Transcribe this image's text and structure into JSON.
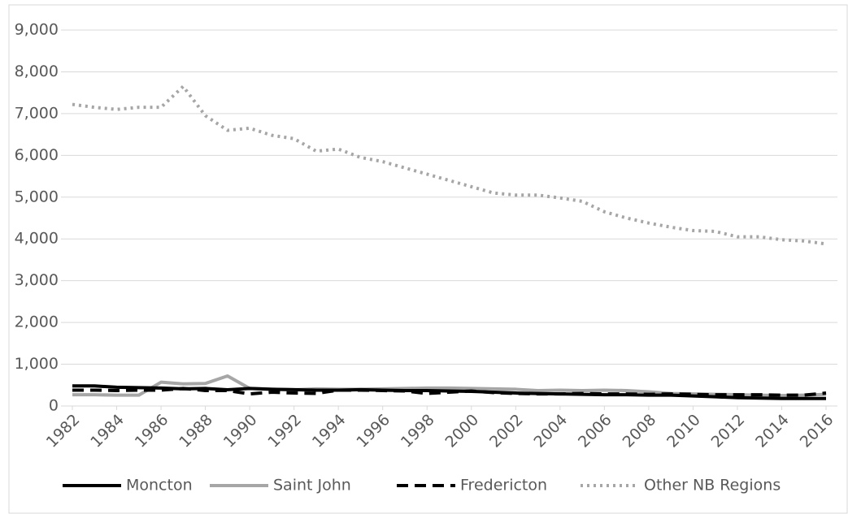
{
  "chart_data": {
    "type": "line",
    "x": [
      1982,
      1983,
      1984,
      1985,
      1986,
      1987,
      1988,
      1989,
      1990,
      1991,
      1992,
      1993,
      1994,
      1995,
      1996,
      1997,
      1998,
      1999,
      2000,
      2001,
      2002,
      2003,
      2004,
      2005,
      2006,
      2007,
      2008,
      2009,
      2010,
      2011,
      2012,
      2013,
      2014,
      2015,
      2016
    ],
    "xlim": [
      1982,
      2016
    ],
    "xticks": [
      1982,
      1984,
      1986,
      1988,
      1990,
      1992,
      1994,
      1996,
      1998,
      2000,
      2002,
      2004,
      2006,
      2008,
      2010,
      2012,
      2014,
      2016
    ],
    "ylim": [
      0,
      9000
    ],
    "yticks": [
      0,
      {
        "value": 1000,
        "label": "1,000"
      },
      {
        "value": 2000,
        "label": "2,000"
      },
      {
        "value": 3000,
        "label": "3,000"
      },
      {
        "value": 4000,
        "label": "4,000"
      },
      {
        "value": 5000,
        "label": "5,000"
      },
      {
        "value": 6000,
        "label": "6,000"
      },
      {
        "value": 7000,
        "label": "7,000"
      },
      {
        "value": 8000,
        "label": "8,000"
      },
      {
        "value": 9000,
        "label": "9,000"
      }
    ],
    "grid": true,
    "legend": "bottom",
    "series": [
      {
        "name": "Moncton",
        "color": "#000000",
        "dash": "solid",
        "values": [
          480,
          480,
          450,
          440,
          430,
          410,
          420,
          390,
          420,
          400,
          390,
          380,
          380,
          390,
          380,
          370,
          370,
          360,
          350,
          330,
          310,
          300,
          290,
          280,
          270,
          270,
          260,
          260,
          240,
          220,
          200,
          190,
          180,
          180,
          180
        ]
      },
      {
        "name": "Saint John",
        "color": "#a6a6a6",
        "dash": "solid",
        "values": [
          270,
          270,
          260,
          260,
          570,
          530,
          540,
          720,
          420,
          400,
          390,
          410,
          400,
          400,
          410,
          420,
          430,
          430,
          420,
          410,
          400,
          370,
          380,
          370,
          380,
          370,
          340,
          300,
          290,
          280,
          270,
          260,
          250,
          260,
          280
        ]
      },
      {
        "name": "Fredericton",
        "color": "#000000",
        "dash": "dashed",
        "values": [
          380,
          380,
          370,
          380,
          380,
          420,
          370,
          370,
          290,
          330,
          310,
          300,
          380,
          380,
          370,
          360,
          300,
          330,
          360,
          320,
          300,
          290,
          290,
          300,
          290,
          290,
          280,
          290,
          280,
          270,
          270,
          270,
          260,
          260,
          310
        ]
      },
      {
        "name": "Other NB Regions",
        "color": "#a6a6a6",
        "dash": "dotted",
        "values": [
          7220,
          7150,
          7100,
          7150,
          7150,
          7650,
          6950,
          6600,
          6650,
          6480,
          6400,
          6100,
          6150,
          5950,
          5850,
          5700,
          5550,
          5400,
          5250,
          5100,
          5050,
          5050,
          4980,
          4900,
          4650,
          4500,
          4380,
          4280,
          4200,
          4180,
          4050,
          4050,
          3980,
          3950,
          3880
        ]
      }
    ]
  }
}
